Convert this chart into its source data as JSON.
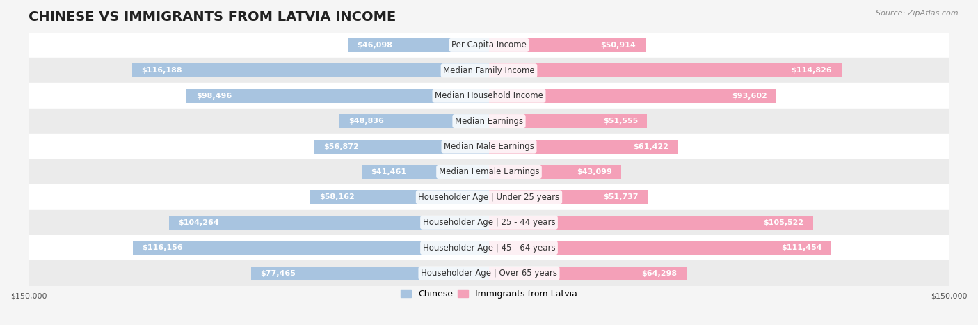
{
  "title": "CHINESE VS IMMIGRANTS FROM LATVIA INCOME",
  "source": "Source: ZipAtlas.com",
  "categories": [
    "Per Capita Income",
    "Median Family Income",
    "Median Household Income",
    "Median Earnings",
    "Median Male Earnings",
    "Median Female Earnings",
    "Householder Age | Under 25 years",
    "Householder Age | 25 - 44 years",
    "Householder Age | 45 - 64 years",
    "Householder Age | Over 65 years"
  ],
  "chinese_values": [
    46098,
    116188,
    98496,
    48836,
    56872,
    41461,
    58162,
    104264,
    116156,
    77465
  ],
  "latvia_values": [
    50914,
    114826,
    93602,
    51555,
    61422,
    43099,
    51737,
    105522,
    111454,
    64298
  ],
  "chinese_color": "#a8c4e0",
  "latvia_color": "#f4a0b8",
  "chinese_label_color": "#5a8ab0",
  "latvia_label_color": "#e06080",
  "bar_height": 0.55,
  "xlim": 150000,
  "background_color": "#f5f5f5",
  "row_bg_color": "#ffffff",
  "row_bg_alt_color": "#f0f0f0",
  "title_fontsize": 14,
  "label_fontsize": 8.5,
  "value_fontsize": 8,
  "legend_fontsize": 9,
  "axis_fontsize": 8
}
